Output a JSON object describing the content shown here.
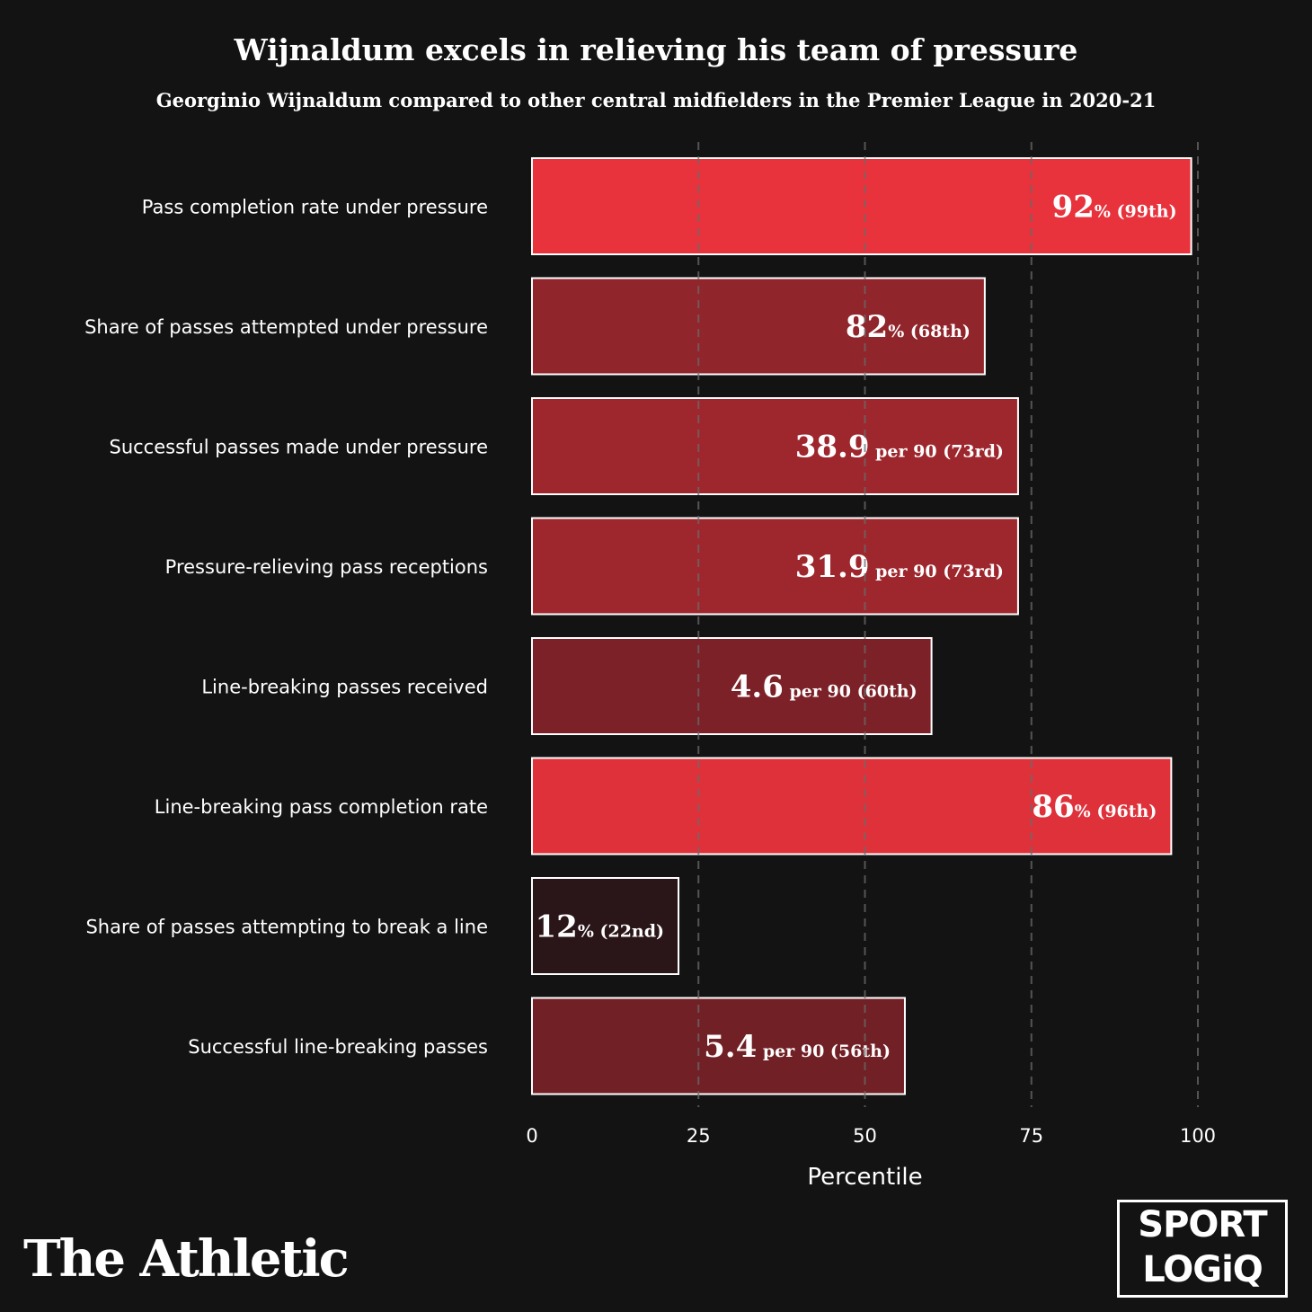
{
  "header": {
    "title": "Wijnaldum excels in relieving his team of pressure",
    "subtitle": "Georginio Wijnaldum compared to other central midfielders in the Premier League in 2020-21"
  },
  "branding": {
    "publisher": "The Athletic",
    "partner_line1": "SPORT",
    "partner_line2": "LOGiQ"
  },
  "chart_data": {
    "type": "bar",
    "orientation": "horizontal",
    "xlabel": "Percentile",
    "xlim": [
      0,
      100
    ],
    "xticks": [
      0,
      25,
      50,
      75,
      100
    ],
    "grid": "vertical dashed at 25, 50, 75, 100",
    "categories": [
      "Pass completion rate under pressure",
      "Share of passes attempted under pressure",
      "Successful passes made under pressure",
      "Pressure-relieving pass receptions",
      "Line-breaking passes received",
      "Line-breaking pass completion rate",
      "Share of passes attempting to break a line",
      "Successful line-breaking passes"
    ],
    "values": [
      99,
      68,
      73,
      73,
      60,
      96,
      22,
      56
    ],
    "value_labels": [
      {
        "main": "92",
        "suffix": "% (99th)"
      },
      {
        "main": "82",
        "suffix": "% (68th)"
      },
      {
        "main": "38.9",
        "suffix": " per 90 (73rd)"
      },
      {
        "main": "31.9",
        "suffix": " per 90 (73rd)"
      },
      {
        "main": "4.6",
        "suffix": " per 90 (60th)"
      },
      {
        "main": "86",
        "suffix": "% (96th)"
      },
      {
        "main": "12",
        "suffix": "% (22nd)"
      },
      {
        "main": "5.4",
        "suffix": " per 90 (56th)"
      }
    ],
    "colors": {
      "background": "#131313",
      "bar_low": "#2a1518",
      "bar_high": "#e8323c",
      "bar_border": "#ffffff",
      "grid": "#6a6a6a"
    }
  }
}
